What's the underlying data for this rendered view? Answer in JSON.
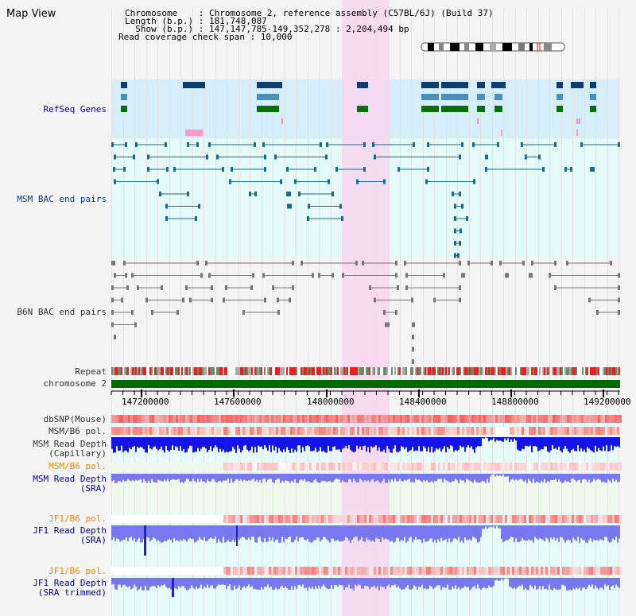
{
  "page": {
    "title": "Map View"
  },
  "info": {
    "line1": "Chromosome    : Chromosome 2, reference assembly (C57BL/6J) (Build 37)",
    "line2": "Length (b.p.) : 181,748,087",
    "line3": "  Show (b.p.) : 147,147,785-149,352,278 : 2,204,494 bp",
    "line4": "Read coverage check span : 10,000"
  },
  "tracks": {
    "refseq": "RefSeq Genes",
    "msm_bac": "MSM BAC end pairs",
    "b6n_bac": "B6N BAC end pairs",
    "repeat": "Repeat",
    "chromosome": "chromosome 2",
    "dbsnp": "dbSNP(Mouse)",
    "msm_b6_pol_1": "MSM/B6 pol.",
    "msm_rd_cap_1": "MSM Read Depth",
    "msm_rd_cap_2": "(Capillary)",
    "msm_b6_pol_2": "MSM/B6 pol.",
    "msm_rd_sra_1": "MSM Read Depth",
    "msm_rd_sra_2": "(SRA)",
    "jf1_b6_pol_1": "JF1/B6 pol.",
    "jf1_rd_sra_1": "JF1 Read Depth",
    "jf1_rd_sra_2": "(SRA)",
    "jf1_b6_pol_2": "JF1/B6 pol.",
    "jf1_rd_trim_1": "JF1 Read Depth",
    "jf1_rd_trim_2": "(SRA trimmed)"
  },
  "axis": {
    "ticks": [
      "147200000",
      "147600000",
      "148000000",
      "148400000",
      "148800000",
      "149200000"
    ]
  },
  "colors": {
    "refseq_bg": "#d6eefa",
    "bac_bg": "#e4faf8",
    "highlight": "#f7d6f0",
    "label_blue": "#00008b",
    "label_orange": "#e68a00",
    "gene_navy": "#0d3d6e",
    "gene_blue": "#4a90b8",
    "gene_green": "#0a6e0a",
    "chrom_green": "#006b00",
    "depth_blue": "#1414e6",
    "depth_light": "#7878f0",
    "snp_red": "#f06060"
  }
}
